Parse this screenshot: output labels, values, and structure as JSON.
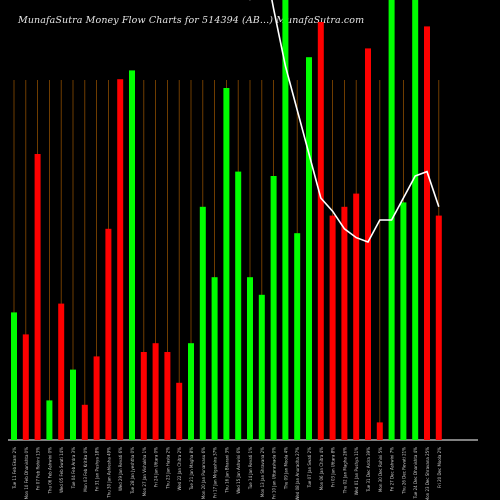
{
  "title": "MunafaSutra  Money Flow  Charts for 514394                  (AB...)  MunafaSutra.com",
  "colors": {
    "background": "#000000",
    "grid": "#8a4b00",
    "baseline": "#ffffff",
    "up": "#00ff00",
    "down": "#ff0000",
    "line": "#ffffff",
    "label": "#cfcfcf"
  },
  "chart_data": {
    "type": "bar",
    "ylim": [
      0,
      100
    ],
    "categories": [
      "Tue 11 Feb Ekam 2%",
      "Mon 10 Feb Dhanishta 0%",
      "Fri 07 Feb Rohini 13%",
      "Thu 06 Feb Ashwini 0%",
      "Wed 05 Feb Swati 14%",
      "Tue 04 Feb Ardra 3%",
      "Mon 03 Feb Kritika 0%",
      "Fri 31 Jan Pushya 18%",
      "Thu 30 Jan Ashlesha 49%",
      "Wed 29 Jan Revati 6%",
      "Tue 28 Jan Jyeshtha 0%",
      "Mon 27 Jan Vishakha 1%",
      "Fri 24 Jan Uttara 0%",
      "Thu 23 Jan Hasta 2%",
      "Wed 22 Jan Chitra 2%",
      "Tue 21 Jan Magha 8%",
      "Mon 20 Jan Punarvasu 6%",
      "Fri 17 Jan Mrigashira 37%",
      "Thu 16 Jan Bharani 3%",
      "Wed 15 Jan Ashwini 6%",
      "Tue 14 Jan Revati 1%",
      "Mon 13 Jan Shravana 2%",
      "Fri 10 Jan Uttarashada 0%",
      "Thu 09 Jan Moola 4%",
      "Wed 08 Jan Anuradha 27%",
      "Tue 07 Jan Swati 2%",
      "Mon 06 Jan Chitra 4%",
      "Fri 03 Jan Uttara 8%",
      "Thu 02 Jan Magha 26%",
      "Wed 01 Jan Pushya 11%",
      "Tue 31 Dec Ardra 39%",
      "Mon 30 Dec Rohini 5%",
      "Fri 27 Dec Ashwini 7%",
      "Thu 26 Dec Revati 21%",
      "Tue 24 Dec Dhanishta 4%",
      "Mon 23 Dec Shravana 25%",
      "Fri 20 Dec Moola 2%"
    ],
    "series": [
      {
        "values": [
          29,
          24,
          65,
          9,
          31,
          16,
          8,
          19,
          48,
          82,
          84,
          20,
          22,
          20,
          13,
          22,
          53,
          37,
          80,
          61,
          37,
          33,
          60,
          100,
          47,
          87,
          95,
          51,
          53,
          56,
          89,
          4,
          100,
          54,
          100,
          94,
          51
        ],
        "directions": [
          "up",
          "down",
          "down",
          "up",
          "down",
          "up",
          "down",
          "down",
          "down",
          "down",
          "up",
          "down",
          "down",
          "down",
          "down",
          "up",
          "up",
          "up",
          "up",
          "up",
          "up",
          "up",
          "up",
          "up",
          "up",
          "up",
          "down",
          "down",
          "down",
          "down",
          "down",
          "down",
          "up",
          "up",
          "up",
          "down",
          "down"
        ]
      },
      {
        "type": "line",
        "values": [
          null,
          null,
          null,
          null,
          null,
          null,
          null,
          null,
          null,
          null,
          null,
          null,
          null,
          null,
          null,
          null,
          null,
          null,
          null,
          110,
          100,
          112,
          98,
          85,
          75,
          65,
          55,
          52,
          48,
          46,
          45,
          50,
          50,
          55,
          60,
          61,
          53
        ]
      }
    ]
  }
}
